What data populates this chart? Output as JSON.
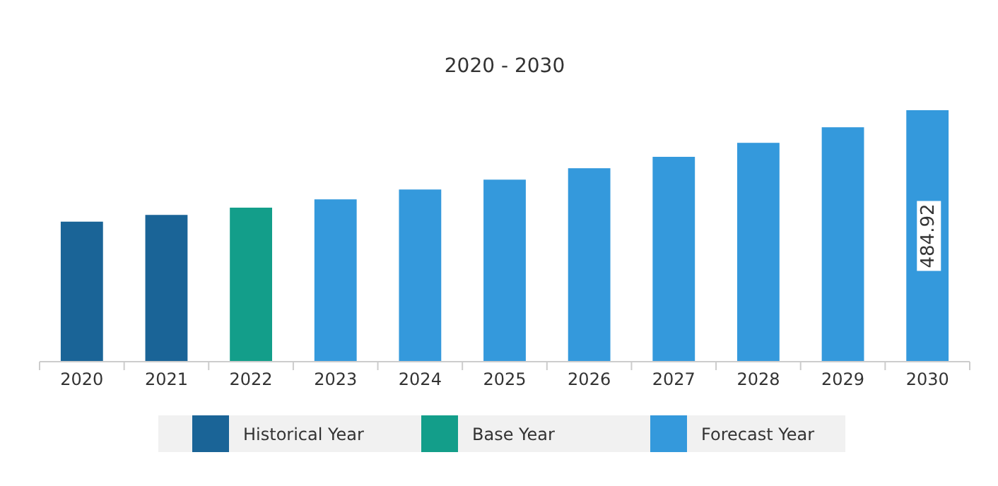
{
  "chart_data": {
    "type": "bar",
    "title": "2020 - 2030",
    "categories": [
      "2020",
      "2021",
      "2022",
      "2023",
      "2024",
      "2025",
      "2026",
      "2027",
      "2028",
      "2029",
      "2030"
    ],
    "legend": "bottom",
    "series": [
      {
        "name": "Historical Year",
        "color": "#1a6497",
        "values": [
          270,
          283,
          null,
          null,
          null,
          null,
          null,
          null,
          null,
          null,
          null
        ]
      },
      {
        "name": "Base Year",
        "color": "#139e8a",
        "values": [
          null,
          null,
          297,
          null,
          null,
          null,
          null,
          null,
          null,
          null,
          null
        ]
      },
      {
        "name": "Forecast Year",
        "color": "#3499dc",
        "values": [
          null,
          null,
          null,
          313,
          332,
          351,
          373,
          395,
          422,
          452,
          484.92
        ],
        "value_labels": [
          null,
          null,
          null,
          null,
          null,
          null,
          null,
          null,
          null,
          null,
          "484.92"
        ]
      }
    ]
  }
}
